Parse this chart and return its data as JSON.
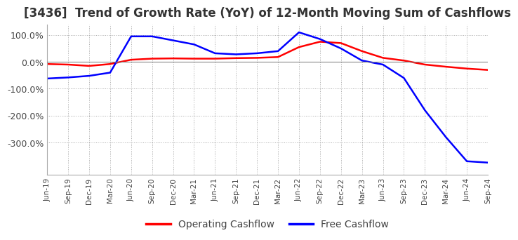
{
  "title": "[3436]  Trend of Growth Rate (YoY) of 12-Month Moving Sum of Cashflows",
  "title_fontsize": 12,
  "ylim": [
    -420,
    140
  ],
  "yticks": [
    100.0,
    0.0,
    -100.0,
    -200.0,
    -300.0
  ],
  "background_color": "#ffffff",
  "grid_color": "#aaaaaa",
  "legend_labels": [
    "Operating Cashflow",
    "Free Cashflow"
  ],
  "line_colors": [
    "#ff0000",
    "#0000ff"
  ],
  "x_labels": [
    "Jun-19",
    "Sep-19",
    "Dec-19",
    "Mar-20",
    "Jun-20",
    "Sep-20",
    "Dec-20",
    "Mar-21",
    "Jun-21",
    "Sep-21",
    "Dec-21",
    "Mar-22",
    "Jun-22",
    "Sep-22",
    "Dec-22",
    "Mar-23",
    "Jun-23",
    "Sep-23",
    "Dec-23",
    "Mar-24",
    "Jun-24",
    "Sep-24"
  ],
  "operating_cashflow": [
    -8,
    -10,
    -15,
    -8,
    8,
    12,
    13,
    12,
    12,
    14,
    15,
    18,
    55,
    75,
    70,
    40,
    15,
    5,
    -10,
    -18,
    -25,
    -30
  ],
  "free_cashflow": [
    -62,
    -58,
    -52,
    -40,
    95,
    95,
    80,
    65,
    32,
    28,
    32,
    40,
    110,
    85,
    50,
    5,
    -10,
    -60,
    -180,
    -280,
    -370,
    -375
  ]
}
